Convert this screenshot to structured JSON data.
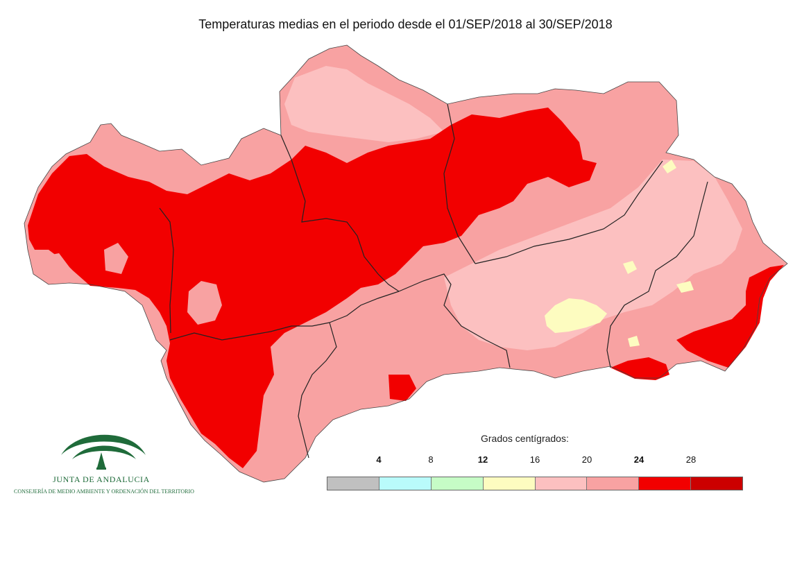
{
  "header": {
    "title": "Temperaturas medias en el periodo desde el 01/SEP/2018 al 30/SEP/2018"
  },
  "legend": {
    "title": "Grados centígrados:",
    "ticks": [
      {
        "label": "4",
        "bold": true
      },
      {
        "label": "8",
        "bold": false
      },
      {
        "label": "12",
        "bold": true
      },
      {
        "label": "16",
        "bold": false
      },
      {
        "label": "20",
        "bold": false
      },
      {
        "label": "24",
        "bold": true
      },
      {
        "label": "28",
        "bold": false
      }
    ],
    "classes": [
      {
        "range": "< 4",
        "color": "#c0c0c0"
      },
      {
        "range": "4-8",
        "color": "#b9fbfb"
      },
      {
        "range": "8-12",
        "color": "#c6fcc6"
      },
      {
        "range": "12-16",
        "color": "#fdfcc0"
      },
      {
        "range": "16-20",
        "color": "#fcc0c0"
      },
      {
        "range": "20-24",
        "color": "#f8a2a2"
      },
      {
        "range": "24-28",
        "color": "#f20000"
      },
      {
        "range": "> 28",
        "color": "#cc0000"
      }
    ]
  },
  "map": {
    "region": "Andalucía",
    "colors": {
      "border": "#222222",
      "very_hot": "#f20000",
      "hot": "#f8a2a2",
      "mild": "#fcc0c0",
      "cool": "#fdfcc0"
    }
  },
  "logo": {
    "name": "JUNTA DE ANDALUCIA",
    "subtitle": "CONSEJERÍA DE MEDIO AMBIENTE Y ORDENACIÓN DEL TERRITORIO",
    "color": "#1f6b3a",
    "icon": "junta-emblem-icon"
  }
}
